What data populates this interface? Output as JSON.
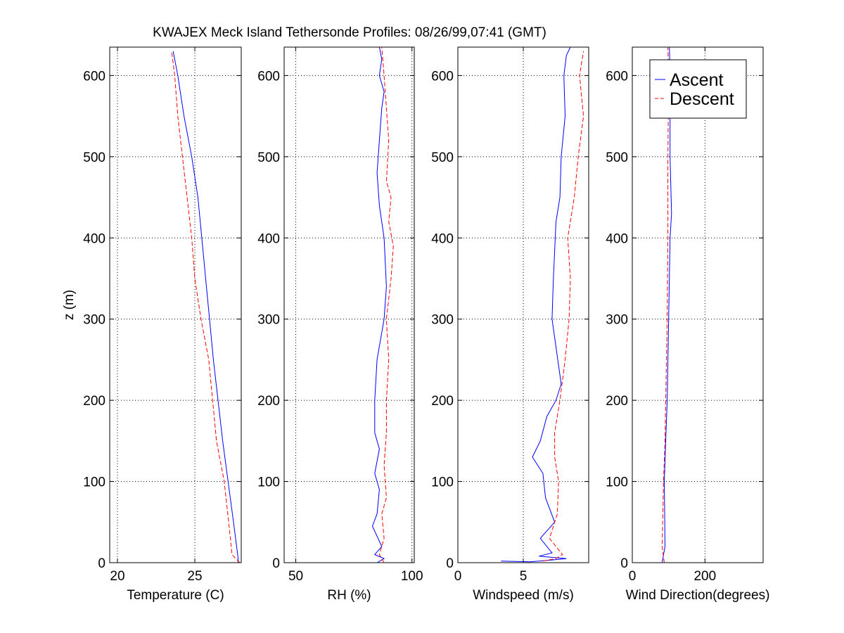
{
  "title": "KWAJEX Meck Island Tethersonde Profiles: 08/26/99,07:41 (GMT)",
  "colors": {
    "ascent": "#0000ff",
    "descent": "#ff0000",
    "axis": "#000000",
    "grid": "#000000"
  },
  "legend": {
    "placement": "top-right of fourth panel",
    "entries": [
      "Ascent",
      "Descent"
    ]
  },
  "chart_data": [
    {
      "type": "line",
      "xlabel": "Temperature (C)",
      "ylabel": "z (m)",
      "xlim": [
        19.5,
        28
      ],
      "ylim": [
        0,
        635
      ],
      "xticks": [
        20,
        25
      ],
      "yticks": [
        0,
        100,
        200,
        300,
        400,
        500,
        600
      ],
      "grid": true,
      "series": [
        {
          "name": "Ascent",
          "style": "solid",
          "points": [
            [
              27.8,
              0
            ],
            [
              27.8,
              5
            ],
            [
              27.5,
              50
            ],
            [
              26.8,
              150
            ],
            [
              26.2,
              250
            ],
            [
              25.7,
              350
            ],
            [
              25.2,
              450
            ],
            [
              24.8,
              500
            ],
            [
              24.3,
              550
            ],
            [
              23.9,
              600
            ],
            [
              23.6,
              630
            ]
          ]
        },
        {
          "name": "Descent",
          "style": "dashed",
          "points": [
            [
              27.9,
              0
            ],
            [
              27.4,
              10
            ],
            [
              27.3,
              30
            ],
            [
              26.9,
              100
            ],
            [
              26.4,
              150
            ],
            [
              25.9,
              250
            ],
            [
              25.4,
              300
            ],
            [
              25.0,
              350
            ],
            [
              24.8,
              400
            ],
            [
              24.5,
              450
            ],
            [
              24.2,
              500
            ],
            [
              23.9,
              550
            ],
            [
              23.7,
              600
            ],
            [
              23.5,
              630
            ]
          ]
        }
      ]
    },
    {
      "type": "line",
      "xlabel": "RH (%)",
      "ylabel": "",
      "xlim": [
        45,
        101
      ],
      "ylim": [
        0,
        635
      ],
      "xticks": [
        50,
        100
      ],
      "yticks": [
        0,
        100,
        200,
        300,
        400,
        500,
        600
      ],
      "grid": true,
      "series": [
        {
          "name": "Ascent",
          "style": "solid",
          "points": [
            [
              85,
              0
            ],
            [
              88,
              5
            ],
            [
              84,
              10
            ],
            [
              87,
              20
            ],
            [
              83,
              45
            ],
            [
              85,
              60
            ],
            [
              86,
              90
            ],
            [
              84,
              110
            ],
            [
              86,
              140
            ],
            [
              84,
              160
            ],
            [
              84,
              200
            ],
            [
              85,
              250
            ],
            [
              88,
              300
            ],
            [
              89,
              340
            ],
            [
              88,
              400
            ],
            [
              86,
              440
            ],
            [
              85,
              480
            ],
            [
              86,
              520
            ],
            [
              87,
              560
            ],
            [
              88,
              580
            ],
            [
              86,
              600
            ],
            [
              87,
              620
            ],
            [
              86,
              635
            ]
          ]
        },
        {
          "name": "Descent",
          "style": "dashed",
          "points": [
            [
              88,
              0
            ],
            [
              86,
              10
            ],
            [
              88,
              30
            ],
            [
              87,
              60
            ],
            [
              89,
              80
            ],
            [
              88,
              120
            ],
            [
              89,
              160
            ],
            [
              89,
              200
            ],
            [
              90,
              250
            ],
            [
              89,
              300
            ],
            [
              91,
              350
            ],
            [
              92,
              390
            ],
            [
              90,
              420
            ],
            [
              91,
              450
            ],
            [
              89,
              470
            ],
            [
              90,
              520
            ],
            [
              89,
              560
            ],
            [
              88,
              600
            ],
            [
              87,
              635
            ]
          ]
        }
      ]
    },
    {
      "type": "line",
      "xlabel": "Windspeed (m/s)",
      "ylabel": "",
      "xlim": [
        0,
        10
      ],
      "ylim": [
        0,
        635
      ],
      "xticks": [
        0,
        5
      ],
      "yticks": [
        0,
        100,
        200,
        300,
        400,
        500,
        600
      ],
      "grid": true,
      "series": [
        {
          "name": "Ascent",
          "style": "solid",
          "points": [
            [
              3.3,
              2
            ],
            [
              5.5,
              1
            ],
            [
              7.0,
              3
            ],
            [
              8.3,
              5
            ],
            [
              6.2,
              8
            ],
            [
              7.2,
              12
            ],
            [
              6.3,
              30
            ],
            [
              7.4,
              50
            ],
            [
              6.7,
              80
            ],
            [
              6.5,
              110
            ],
            [
              5.7,
              130
            ],
            [
              6.3,
              150
            ],
            [
              6.8,
              180
            ],
            [
              7.5,
              200
            ],
            [
              7.9,
              220
            ],
            [
              7.2,
              300
            ],
            [
              7.3,
              350
            ],
            [
              7.5,
              420
            ],
            [
              7.8,
              450
            ],
            [
              7.9,
              500
            ],
            [
              8.2,
              550
            ],
            [
              8.1,
              600
            ],
            [
              8.3,
              625
            ],
            [
              8.6,
              635
            ]
          ]
        },
        {
          "name": "Descent",
          "style": "dashed",
          "points": [
            [
              6.5,
              2
            ],
            [
              7.5,
              5
            ],
            [
              8.0,
              10
            ],
            [
              7.0,
              30
            ],
            [
              7.6,
              60
            ],
            [
              7.7,
              100
            ],
            [
              7.4,
              130
            ],
            [
              7.4,
              160
            ],
            [
              7.8,
              200
            ],
            [
              8.2,
              250
            ],
            [
              8.5,
              300
            ],
            [
              8.6,
              350
            ],
            [
              8.4,
              400
            ],
            [
              8.9,
              450
            ],
            [
              9.2,
              500
            ],
            [
              9.6,
              550
            ],
            [
              9.3,
              600
            ],
            [
              9.6,
              630
            ]
          ]
        }
      ]
    },
    {
      "type": "line",
      "xlabel": "Wind Direction(degrees)",
      "ylabel": "",
      "xlim": [
        0,
        360
      ],
      "ylim": [
        0,
        635
      ],
      "xticks": [
        0,
        200
      ],
      "yticks": [
        0,
        100,
        200,
        300,
        400,
        500,
        600
      ],
      "grid": true,
      "series": [
        {
          "name": "Ascent",
          "style": "solid",
          "points": [
            [
              82,
              0
            ],
            [
              90,
              20
            ],
            [
              88,
              100
            ],
            [
              92,
              150
            ],
            [
              96,
              200
            ],
            [
              100,
              300
            ],
            [
              104,
              400
            ],
            [
              108,
              430
            ],
            [
              104,
              500
            ],
            [
              104,
              600
            ],
            [
              102,
              635
            ]
          ]
        },
        {
          "name": "Descent",
          "style": "dashed",
          "points": [
            [
              88,
              0
            ],
            [
              82,
              20
            ],
            [
              86,
              100
            ],
            [
              90,
              150
            ],
            [
              92,
              200
            ],
            [
              96,
              300
            ],
            [
              98,
              400
            ],
            [
              98,
              500
            ],
            [
              100,
              600
            ],
            [
              98,
              635
            ]
          ]
        }
      ]
    }
  ]
}
